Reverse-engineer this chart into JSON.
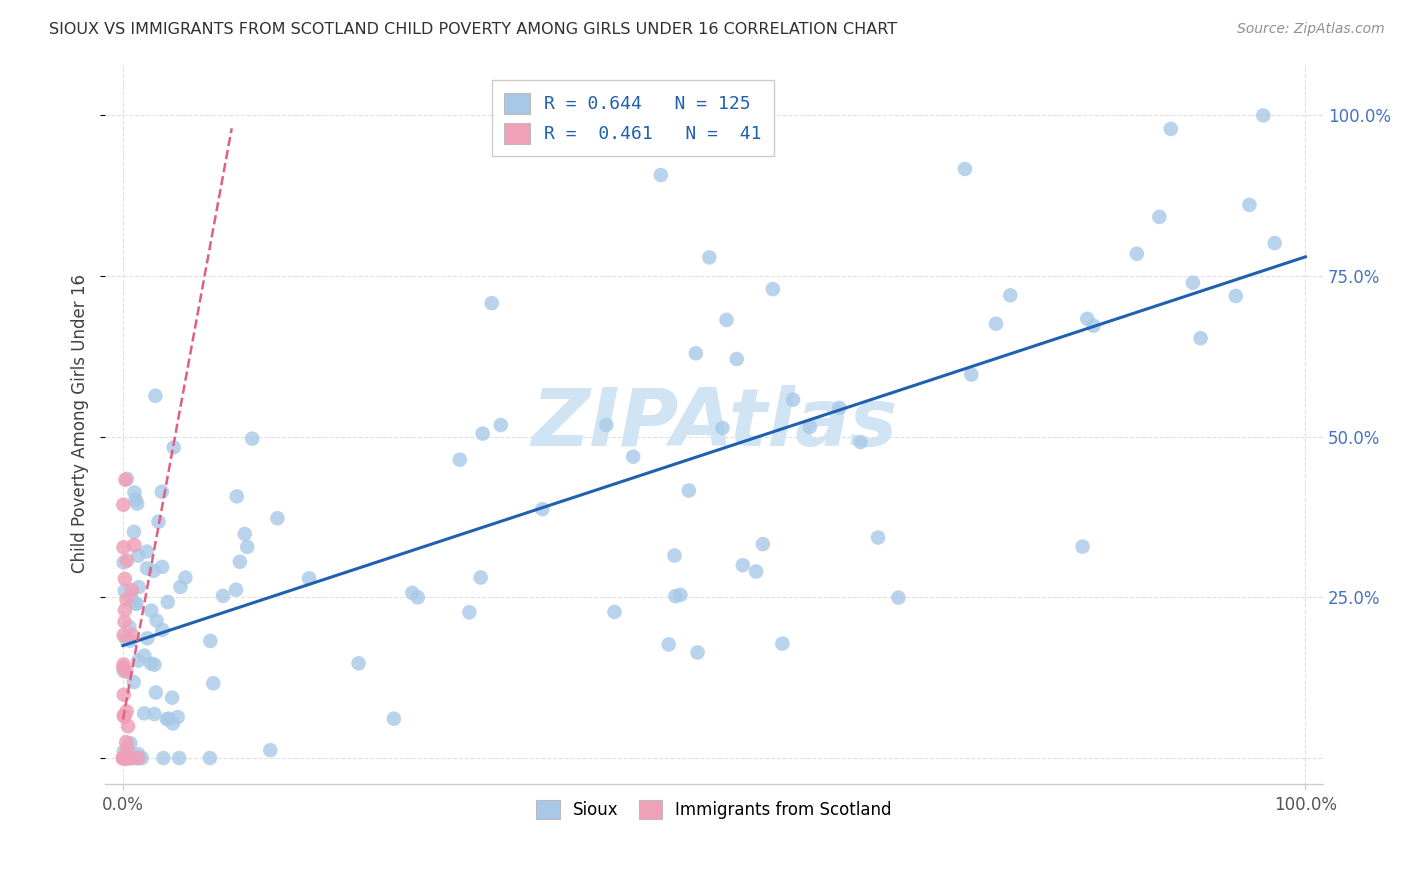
{
  "title": "SIOUX VS IMMIGRANTS FROM SCOTLAND CHILD POVERTY AMONG GIRLS UNDER 16 CORRELATION CHART",
  "source": "Source: ZipAtlas.com",
  "ylabel": "Child Poverty Among Girls Under 16",
  "blue_color": "#A8C8E8",
  "pink_color": "#F0A0B8",
  "blue_line_color": "#2060B0",
  "pink_line_color": "#E06080",
  "watermark_color": "#D0E4F4",
  "background_color": "#FFFFFF",
  "grid_color": "#E0E0E0",
  "tick_color": "#4472C4",
  "title_color": "#303030",
  "source_color": "#909090",
  "ylabel_color": "#404040",
  "legend_R_color": "#2060B0",
  "legend_N_color": "#2060B0"
}
